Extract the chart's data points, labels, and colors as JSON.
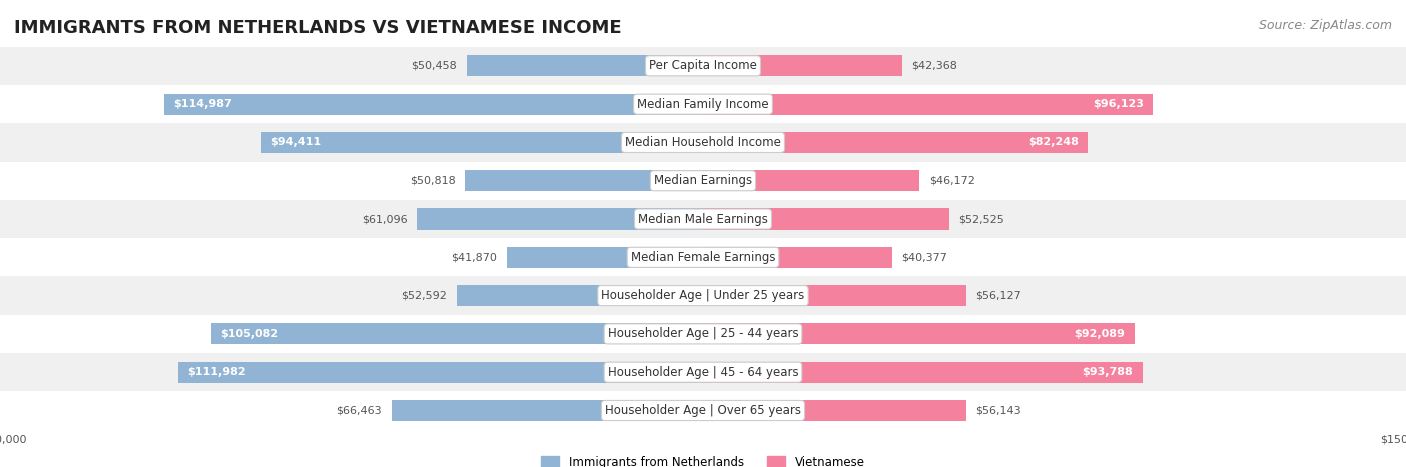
{
  "title": "IMMIGRANTS FROM NETHERLANDS VS VIETNAMESE INCOME",
  "source": "Source: ZipAtlas.com",
  "categories": [
    "Per Capita Income",
    "Median Family Income",
    "Median Household Income",
    "Median Earnings",
    "Median Male Earnings",
    "Median Female Earnings",
    "Householder Age | Under 25 years",
    "Householder Age | 25 - 44 years",
    "Householder Age | 45 - 64 years",
    "Householder Age | Over 65 years"
  ],
  "netherlands_values": [
    50458,
    114987,
    94411,
    50818,
    61096,
    41870,
    52592,
    105082,
    111982,
    66463
  ],
  "vietnamese_values": [
    42368,
    96123,
    82248,
    46172,
    52525,
    40377,
    56127,
    92089,
    93788,
    56143
  ],
  "netherlands_color": "#92b4d4",
  "vietnamese_color": "#f4829e",
  "netherlands_label": "Immigrants from Netherlands",
  "vietnamese_label": "Vietnamese",
  "max_value": 150000,
  "background_color": "#ffffff",
  "row_bg_color": "#f0f0f0",
  "row_alt_bg_color": "#ffffff",
  "title_fontsize": 13,
  "source_fontsize": 9,
  "label_fontsize": 8.5,
  "value_fontsize": 8,
  "axis_label_fontsize": 8,
  "bar_height": 0.55
}
